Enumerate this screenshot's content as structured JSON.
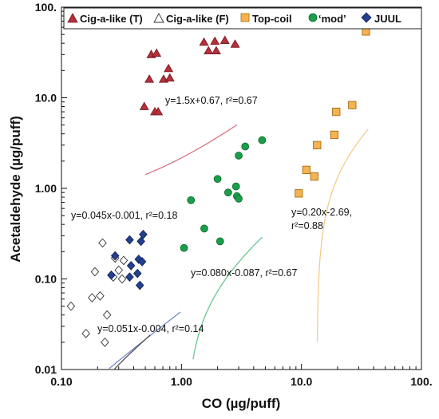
{
  "chart_data": {
    "type": "scatter",
    "xlabel": "CO (µg/puff)",
    "ylabel": "Acetaldehyde (µg/puff)",
    "xscale": "log",
    "yscale": "log",
    "xlim": [
      0.1,
      100
    ],
    "ylim": [
      0.01,
      100
    ],
    "xticks": [
      {
        "value": 0.1,
        "label": "0.10"
      },
      {
        "value": 1,
        "label": "1.00"
      },
      {
        "value": 10,
        "label": "10.0"
      },
      {
        "value": 100,
        "label": "100."
      }
    ],
    "yticks": [
      {
        "value": 0.01,
        "label": "0.01"
      },
      {
        "value": 0.1,
        "label": "0.10"
      },
      {
        "value": 1,
        "label": "1.00"
      },
      {
        "value": 10,
        "label": "10.0"
      },
      {
        "value": 100,
        "label": "100."
      }
    ],
    "grid": false,
    "legend": {
      "placement": "top",
      "boxed": true
    },
    "series": [
      {
        "name": "Cig-a-like (T)",
        "marker": "triangle-up",
        "fill": "#b5303a",
        "stroke": "#7a1a22",
        "points": [
          [
            0.56,
            30
          ],
          [
            0.62,
            31
          ],
          [
            1.54,
            41
          ],
          [
            1.9,
            42
          ],
          [
            2.3,
            43
          ],
          [
            2.8,
            39
          ],
          [
            1.68,
            33
          ],
          [
            1.95,
            33
          ],
          [
            0.78,
            21
          ],
          [
            0.71,
            16
          ],
          [
            0.8,
            16.5
          ],
          [
            0.54,
            16
          ],
          [
            0.49,
            8
          ],
          [
            0.6,
            7
          ],
          [
            0.64,
            7
          ]
        ]
      },
      {
        "name": "Cig-a-like (F)",
        "marker": "diamond",
        "fill": "#ffffff",
        "stroke": "#333333",
        "points": [
          [
            0.22,
            0.25
          ],
          [
            0.19,
            0.12
          ],
          [
            0.28,
            0.17
          ],
          [
            0.33,
            0.16
          ],
          [
            0.3,
            0.125
          ],
          [
            0.27,
            0.105
          ],
          [
            0.32,
            0.1
          ],
          [
            0.18,
            0.062
          ],
          [
            0.21,
            0.065
          ],
          [
            0.12,
            0.05
          ],
          [
            0.24,
            0.04
          ],
          [
            0.16,
            0.025
          ],
          [
            0.23,
            0.02
          ]
        ]
      },
      {
        "name": "Top-coil",
        "marker": "square",
        "fill": "#f4b350",
        "stroke": "#a86d10",
        "points": [
          [
            34.5,
            54
          ],
          [
            26.5,
            8.3
          ],
          [
            19.5,
            7
          ],
          [
            18.8,
            3.9
          ],
          [
            13.5,
            3
          ],
          [
            11,
            1.6
          ],
          [
            12.8,
            1.35
          ],
          [
            9.5,
            0.88
          ]
        ]
      },
      {
        "name": "‘mod’",
        "marker": "circle",
        "fill": "#1a9e49",
        "stroke": "#0b6b2c",
        "points": [
          [
            4.7,
            3.4
          ],
          [
            3.4,
            2.9
          ],
          [
            3.0,
            2.3
          ],
          [
            2.0,
            1.27
          ],
          [
            2.85,
            1.05
          ],
          [
            2.45,
            0.9
          ],
          [
            2.9,
            0.82
          ],
          [
            3.0,
            0.77
          ],
          [
            1.2,
            0.74
          ],
          [
            1.55,
            0.36
          ],
          [
            2.1,
            0.26
          ],
          [
            1.05,
            0.22
          ]
        ]
      },
      {
        "name": "JUUL",
        "marker": "diamond",
        "fill": "#24418f",
        "stroke": "#11245c",
        "points": [
          [
            0.48,
            0.31
          ],
          [
            0.37,
            0.27
          ],
          [
            0.46,
            0.26
          ],
          [
            0.28,
            0.18
          ],
          [
            0.44,
            0.165
          ],
          [
            0.47,
            0.155
          ],
          [
            0.38,
            0.14
          ],
          [
            0.26,
            0.11
          ],
          [
            0.43,
            0.115
          ],
          [
            0.37,
            0.105
          ],
          [
            0.45,
            0.085
          ]
        ]
      }
    ],
    "trendlines": [
      {
        "series": "Cig-a-like (T)",
        "color": "#d66a78",
        "equation": "y=1.5x+0.67, r²=0.67",
        "x_range": [
          0.5,
          2.9
        ]
      },
      {
        "series": "JUUL",
        "color": "#6f82c8",
        "equation": "y=0.045x-0.001, r²=0.18",
        "x_range": [
          0.25,
          0.98
        ]
      },
      {
        "series": "Cig-a-like (F)",
        "color": "#444444",
        "equation": "y=0.051x-0.004, r²=0.14",
        "x_range": [
          0.125,
          0.55
        ]
      },
      {
        "series": "‘mod’",
        "color": "#5cc48a",
        "equation": "y=0.080x-0.087, r²=0.67",
        "x_range": [
          1.25,
          4.7
        ]
      },
      {
        "series": "Top-coil",
        "color": "#f2c983",
        "equation_lines": [
          "y=0.20x-2.69,",
          "r²=0.88"
        ],
        "x_range": [
          13.55,
          36
        ]
      }
    ]
  }
}
